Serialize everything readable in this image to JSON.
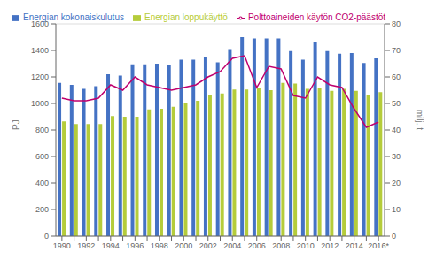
{
  "chart_data": {
    "type": "bar",
    "categories": [
      "1990",
      null,
      "1992",
      null,
      "1994",
      null,
      "1996",
      null,
      "1998",
      null,
      "2000",
      null,
      "2002",
      null,
      "2004",
      null,
      "2006",
      null,
      "2008",
      null,
      "2010",
      null,
      "2012",
      null,
      "2014",
      null,
      "2016*"
    ],
    "series": [
      {
        "name": "Energian kokonaiskulutus",
        "color": "#4472c4",
        "values": [
          1155,
          1140,
          1110,
          1130,
          1220,
          1210,
          1295,
          1295,
          1300,
          1290,
          1330,
          1330,
          1350,
          1310,
          1410,
          1500,
          1490,
          1490,
          1490,
          1395,
          1330,
          1460,
          1395,
          1375,
          1380,
          1305,
          1340
        ]
      },
      {
        "name": "Energian loppukäyttö",
        "color": "#b5cc3b",
        "values": [
          865,
          845,
          845,
          845,
          905,
          900,
          900,
          955,
          960,
          975,
          1005,
          1020,
          1060,
          1075,
          1105,
          1105,
          1115,
          1100,
          1155,
          1150,
          1110,
          1115,
          1095,
          1110,
          1095,
          1065,
          1085
        ]
      },
      {
        "name": "Polttoaineiden käytön CO2-päästöt",
        "color": "#bf006e",
        "type": "line",
        "axis": "y2",
        "values": [
          52,
          51,
          51,
          52,
          57,
          55,
          60,
          57,
          56,
          55,
          56,
          57,
          60,
          62,
          67,
          68,
          56,
          64,
          63,
          53,
          52,
          60,
          57,
          56,
          48,
          41,
          43
        ]
      }
    ],
    "ylabel": "PJ",
    "y2label": "milj. t",
    "ylim": [
      0,
      1600
    ],
    "yticks": [
      0,
      200,
      400,
      600,
      800,
      1000,
      1200,
      1400,
      1600
    ],
    "y2lim": [
      0,
      80
    ],
    "y2ticks": [
      0,
      10,
      20,
      30,
      40,
      50,
      60,
      70,
      80
    ],
    "grid": true,
    "legend": "upper left"
  }
}
